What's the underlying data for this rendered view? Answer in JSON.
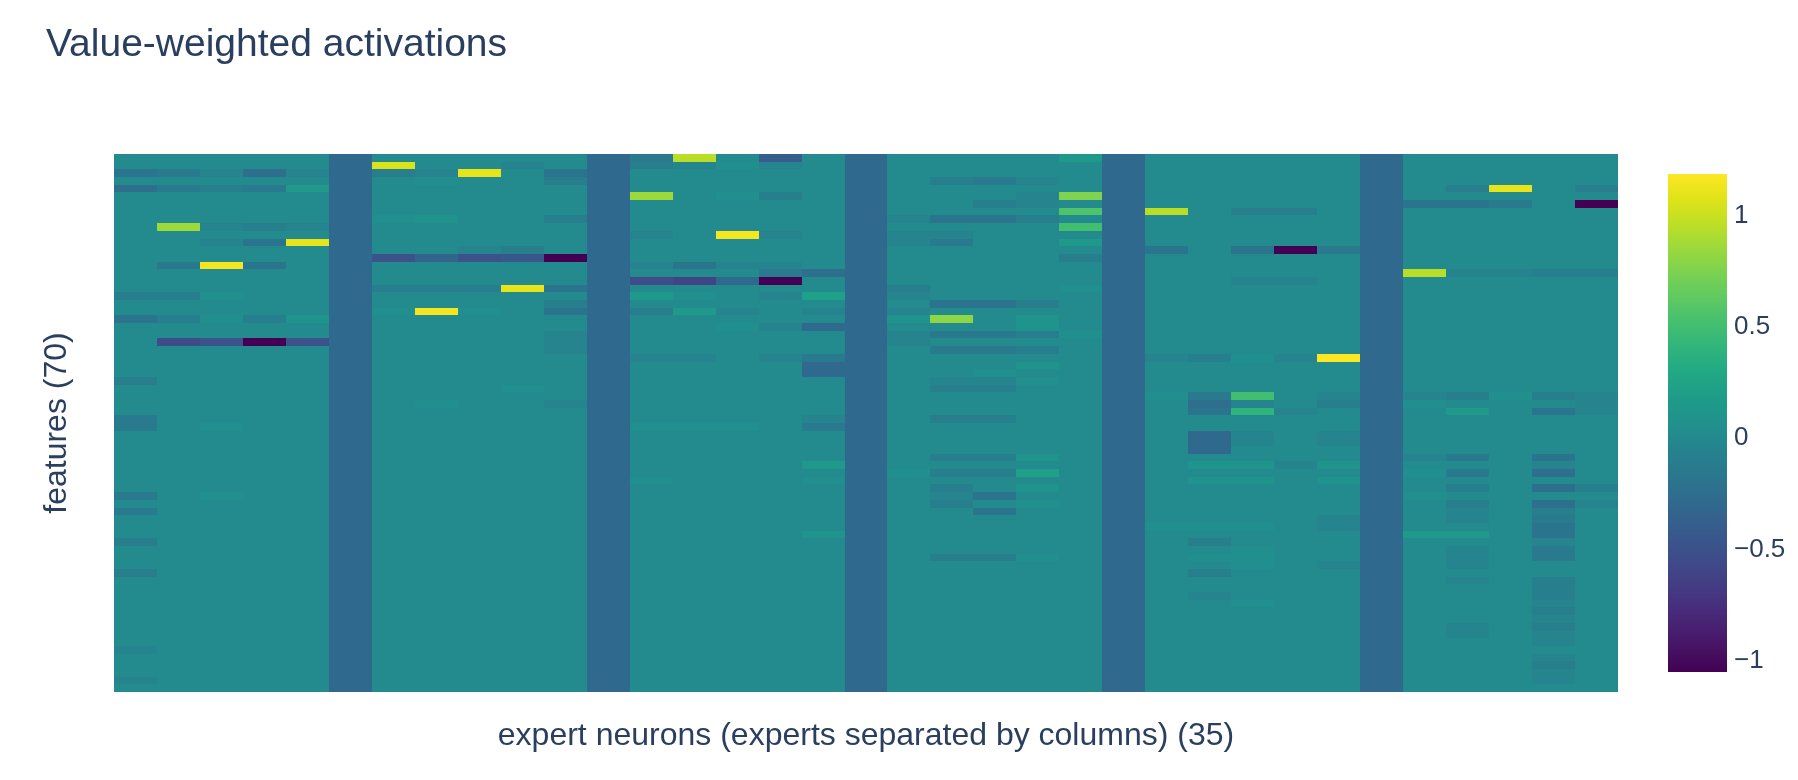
{
  "chart_data": {
    "type": "heatmap",
    "title": "Value-weighted activations",
    "xlabel": "expert neurons (experts separated by columns) (35)",
    "ylabel": "features (70)",
    "categories": [
      null,
      null,
      null,
      null,
      null,
      null,
      null,
      null,
      null,
      null,
      null,
      null,
      null,
      null,
      null,
      null,
      null,
      null,
      null,
      null,
      null,
      null,
      null,
      null,
      null,
      null,
      null,
      null,
      null,
      null,
      null,
      null,
      null,
      null,
      null
    ],
    "y_categories": [
      null,
      null,
      null,
      null,
      null,
      null,
      null,
      null,
      null,
      null,
      null,
      null,
      null,
      null,
      null,
      null,
      null,
      null,
      null,
      null,
      null,
      null,
      null,
      null,
      null,
      null,
      null,
      null,
      null,
      null,
      null,
      null,
      null,
      null,
      null,
      null,
      null,
      null,
      null,
      null,
      null,
      null,
      null,
      null,
      null,
      null,
      null,
      null,
      null,
      null,
      null,
      null,
      null,
      null,
      null,
      null,
      null,
      null,
      null,
      null,
      null,
      null,
      null,
      null,
      null,
      null,
      null,
      null,
      null,
      null
    ],
    "clim": [
      -1.06,
      1.18
    ],
    "cticks": [
      {
        "value": -1,
        "label": "−1"
      },
      {
        "value": -0.5,
        "label": "−0.5"
      },
      0,
      0.5,
      1
    ],
    "cells": [
      [
        0,
        0,
        0,
        0,
        0,
        -0.3,
        0,
        0,
        0,
        0,
        0,
        -0.3,
        -0.15,
        0.95,
        0,
        -0.4,
        0,
        -0.3,
        0,
        0,
        0,
        0,
        0.15,
        -0.3,
        0,
        0,
        0,
        0,
        0,
        -0.3,
        0,
        0,
        0,
        0,
        0
      ],
      [
        0,
        0,
        0,
        0,
        0,
        -0.3,
        1.05,
        0,
        0,
        -0.05,
        0,
        -0.3,
        -0.1,
        -0.05,
        0.05,
        -0.05,
        0,
        -0.3,
        0,
        0,
        0,
        0,
        0,
        -0.3,
        0,
        0,
        0,
        0,
        0,
        -0.3,
        0,
        0,
        0,
        0,
        0
      ],
      [
        -0.2,
        -0.15,
        -0.05,
        -0.25,
        -0.05,
        -0.3,
        -0.1,
        -0.05,
        1.1,
        0,
        -0.2,
        -0.3,
        0,
        0,
        0,
        0,
        0,
        -0.3,
        0,
        0,
        0,
        0,
        0,
        -0.3,
        0,
        0,
        0,
        0,
        0,
        -0.3,
        0,
        0,
        0,
        0,
        0
      ],
      [
        0,
        0,
        0,
        0,
        0,
        -0.3,
        0,
        0.05,
        0,
        0,
        -0.1,
        -0.3,
        0,
        0,
        0,
        0,
        0,
        -0.3,
        0,
        -0.1,
        -0.15,
        -0.05,
        0,
        -0.3,
        0,
        0,
        0,
        0,
        0,
        -0.3,
        0,
        0,
        0,
        0,
        0
      ],
      [
        -0.25,
        -0.15,
        -0.1,
        -0.15,
        0.15,
        -0.3,
        0,
        0,
        0,
        0,
        0,
        -0.3,
        0,
        0,
        0,
        0,
        0,
        -0.3,
        0,
        0,
        0,
        0,
        0,
        -0.3,
        0,
        0,
        0,
        0,
        0,
        -0.3,
        0,
        -0.1,
        1.1,
        0,
        -0.1
      ],
      [
        0,
        0,
        0,
        0,
        0,
        -0.3,
        0,
        0,
        0,
        0,
        0,
        -0.3,
        0.85,
        0,
        0.05,
        -0.1,
        0,
        -0.3,
        0,
        0,
        0,
        -0.05,
        0.75,
        -0.3,
        0,
        0,
        0,
        0,
        0,
        -0.3,
        0,
        0,
        0,
        0,
        0
      ],
      [
        0,
        0,
        0,
        0,
        0,
        -0.3,
        0,
        0,
        0,
        0,
        0,
        -0.3,
        0,
        0,
        0,
        0,
        0,
        -0.3,
        0,
        0,
        -0.1,
        -0.05,
        0,
        -0.3,
        0,
        0,
        0,
        0,
        0,
        -0.3,
        -0.2,
        -0.2,
        -0.15,
        0,
        -1.06
      ],
      [
        0,
        0,
        0,
        0,
        0,
        -0.3,
        0,
        0,
        0,
        0,
        0,
        -0.3,
        0,
        0,
        0,
        0,
        0,
        -0.3,
        0,
        0,
        0,
        0,
        0.55,
        -0.3,
        0.95,
        0,
        -0.1,
        -0.1,
        0,
        -0.3,
        0,
        0,
        0,
        0,
        0
      ],
      [
        0,
        0,
        0,
        0,
        0,
        -0.3,
        0.05,
        0.1,
        0,
        0,
        -0.1,
        -0.3,
        0,
        0,
        0,
        0,
        0,
        -0.3,
        -0.05,
        -0.2,
        -0.2,
        -0.1,
        0,
        -0.3,
        0,
        0,
        0,
        0,
        0,
        -0.3,
        0,
        0,
        0,
        0,
        0
      ],
      [
        0,
        0.85,
        -0.05,
        -0.1,
        -0.05,
        -0.3,
        0,
        0,
        0,
        0,
        0,
        -0.3,
        0,
        0,
        0,
        0,
        0,
        -0.3,
        0,
        0,
        0,
        0,
        0.5,
        -0.3,
        0,
        0,
        0,
        0,
        0,
        -0.3,
        0,
        0,
        0,
        0,
        0
      ],
      [
        0,
        0,
        0,
        0,
        0,
        -0.3,
        0,
        0,
        0,
        0,
        0,
        -0.3,
        -0.05,
        0,
        1.15,
        -0.05,
        0,
        -0.3,
        -0.05,
        -0.05,
        0,
        0,
        0,
        -0.3,
        0,
        0,
        0,
        0,
        0,
        -0.3,
        0,
        0,
        0,
        0,
        0
      ],
      [
        0,
        0,
        -0.05,
        -0.2,
        1.1,
        -0.3,
        0,
        0,
        0,
        0,
        0,
        -0.3,
        0,
        0,
        0,
        0,
        0,
        -0.3,
        -0.05,
        -0.15,
        0,
        0,
        0.15,
        -0.3,
        0,
        0,
        0,
        0,
        0,
        -0.3,
        0,
        0,
        0,
        0,
        0
      ],
      [
        0,
        0,
        0,
        0,
        0,
        -0.3,
        0,
        0,
        -0.05,
        -0.1,
        0,
        -0.3,
        0,
        0,
        0,
        0,
        0,
        -0.3,
        0,
        0,
        0,
        0,
        0,
        -0.3,
        -0.2,
        0,
        -0.2,
        -1.06,
        -0.15,
        -0.3,
        0,
        0,
        0,
        0,
        0
      ],
      [
        0,
        0,
        0,
        0,
        0,
        -0.3,
        -0.5,
        -0.35,
        -0.5,
        -0.45,
        -1.06,
        -0.3,
        0,
        0,
        0,
        0,
        0,
        -0.3,
        0,
        0,
        0,
        0,
        -0.1,
        -0.3,
        0,
        0,
        0,
        0,
        0,
        -0.3,
        0,
        0,
        0,
        0,
        0
      ],
      [
        0,
        -0.15,
        1.15,
        -0.2,
        0,
        -0.3,
        0,
        0,
        0,
        0,
        0,
        -0.3,
        -0.05,
        -0.2,
        -0.05,
        -0.05,
        0,
        -0.3,
        0,
        0,
        0,
        0,
        0,
        -0.3,
        0,
        0,
        0,
        0,
        0,
        -0.3,
        0,
        0,
        0,
        0,
        0
      ],
      [
        0,
        0,
        0,
        0,
        0,
        -0.3,
        0,
        0,
        0,
        0,
        0,
        -0.3,
        0,
        0,
        0,
        -0.15,
        -0.25,
        -0.3,
        0,
        0,
        0,
        0,
        0,
        -0.3,
        0,
        0,
        0,
        0,
        0,
        -0.3,
        0.95,
        -0.05,
        -0.05,
        -0.1,
        -0.1
      ],
      [
        0,
        0,
        0,
        0,
        0,
        -0.3,
        0,
        0,
        0,
        0,
        0,
        -0.3,
        -0.55,
        -0.6,
        -0.3,
        -1.06,
        0,
        -0.3,
        0,
        0,
        0,
        0,
        0,
        -0.3,
        0,
        0,
        -0.05,
        -0.05,
        0,
        -0.3,
        0,
        0,
        0,
        0,
        0
      ],
      [
        0,
        0,
        0,
        0,
        0,
        -0.3,
        -0.1,
        -0.1,
        -0.1,
        1.1,
        -0.2,
        -0.3,
        0,
        0,
        0,
        0,
        0,
        -0.3,
        -0.1,
        0,
        0,
        0,
        0.05,
        -0.3,
        0,
        0,
        0,
        0,
        0,
        -0.3,
        0,
        0,
        0,
        0,
        0
      ],
      [
        -0.1,
        -0.1,
        0.05,
        0,
        0,
        -0.3,
        0,
        0,
        0,
        0,
        0,
        -0.3,
        0.15,
        0.05,
        0,
        -0.05,
        0.2,
        -0.3,
        -0.05,
        0,
        0,
        0,
        0,
        -0.3,
        0,
        0,
        0,
        0,
        0,
        -0.3,
        0,
        0,
        0,
        0,
        0
      ],
      [
        0,
        0,
        0,
        0,
        0,
        -0.3,
        0,
        0,
        0,
        0,
        -0.1,
        -0.3,
        0,
        0,
        0,
        0,
        0,
        -0.3,
        0,
        -0.2,
        -0.2,
        -0.1,
        0,
        -0.3,
        0,
        0,
        0,
        0,
        0,
        -0.3,
        0,
        0,
        0,
        0,
        0
      ],
      [
        0,
        0,
        0,
        0,
        0,
        -0.3,
        0.05,
        1.15,
        0.05,
        0,
        -0.2,
        -0.3,
        -0.1,
        0.15,
        -0.05,
        0,
        -0.05,
        -0.3,
        -0.05,
        0,
        0,
        0,
        0,
        -0.3,
        0,
        0,
        0,
        0,
        0,
        -0.3,
        0,
        0,
        0,
        0,
        0
      ],
      [
        -0.2,
        -0.1,
        0.05,
        -0.1,
        0.1,
        -0.3,
        0,
        0,
        0,
        0,
        0,
        -0.3,
        0,
        0,
        0,
        0,
        0,
        -0.3,
        0.1,
        0.8,
        0,
        0.1,
        0,
        -0.3,
        0,
        0,
        0,
        0,
        0,
        -0.3,
        0,
        0,
        0,
        0,
        0
      ],
      [
        0,
        0,
        0,
        0,
        0,
        -0.3,
        0,
        0,
        0,
        0,
        0,
        -0.3,
        0,
        0,
        0.05,
        -0.05,
        -0.3,
        -0.3,
        0,
        0,
        0,
        0.1,
        0,
        -0.3,
        0,
        0,
        0,
        0,
        0,
        -0.3,
        0,
        0,
        0,
        0,
        0
      ],
      [
        0,
        0,
        0,
        0,
        0,
        -0.3,
        0,
        0,
        0,
        0,
        -0.05,
        -0.3,
        0,
        0,
        0,
        0,
        0,
        -0.3,
        -0.05,
        -0.15,
        -0.15,
        -0.1,
        0.05,
        -0.3,
        0,
        0,
        0,
        0,
        0,
        -0.3,
        0,
        0,
        0,
        0,
        0
      ],
      [
        0,
        -0.55,
        -0.5,
        -1.06,
        -0.5,
        -0.3,
        0,
        0,
        0,
        0,
        -0.05,
        -0.3,
        0,
        0,
        0,
        0,
        0,
        -0.3,
        -0.05,
        0,
        0,
        0,
        0,
        -0.3,
        0,
        0,
        0,
        0,
        0,
        -0.3,
        0,
        0,
        0,
        0,
        0
      ],
      [
        0,
        0,
        0,
        0,
        0,
        -0.3,
        0,
        0,
        0,
        0,
        -0.05,
        -0.3,
        0,
        0,
        0,
        0,
        0,
        -0.3,
        0,
        -0.15,
        -0.15,
        -0.1,
        0,
        -0.3,
        0,
        0,
        0,
        0,
        0,
        -0.3,
        0,
        0,
        0,
        0,
        0
      ],
      [
        0,
        0,
        0,
        0,
        0,
        -0.3,
        0,
        0,
        0,
        0,
        0,
        -0.3,
        -0.05,
        -0.05,
        0,
        -0.05,
        -0.15,
        -0.3,
        0,
        0,
        0,
        0,
        0,
        -0.3,
        -0.05,
        -0.1,
        0.05,
        -0.05,
        1.18,
        -0.3,
        0,
        0,
        0,
        0,
        0
      ],
      [
        0,
        0,
        0,
        0,
        0,
        -0.3,
        0,
        0,
        0,
        0,
        0,
        -0.3,
        0,
        0,
        0,
        0,
        -0.3,
        -0.3,
        0,
        0,
        0,
        0.1,
        0,
        -0.3,
        0,
        0,
        0,
        0,
        0,
        -0.3,
        0,
        0,
        0,
        0,
        0
      ],
      [
        0,
        0,
        0,
        0,
        0,
        -0.3,
        0,
        0,
        0,
        0,
        0,
        -0.3,
        0,
        0,
        0,
        0,
        -0.3,
        -0.3,
        0,
        0,
        0.05,
        0,
        0,
        -0.3,
        0,
        0,
        0,
        0,
        0,
        -0.3,
        0,
        0,
        0,
        0,
        0
      ],
      [
        -0.1,
        0,
        0,
        0,
        0,
        -0.3,
        0,
        0,
        0,
        0,
        0,
        -0.3,
        0,
        0,
        0,
        0,
        0,
        -0.3,
        0,
        -0.05,
        -0.05,
        0.05,
        0,
        -0.3,
        0,
        0,
        0,
        0,
        0,
        -0.3,
        0,
        0,
        0,
        0,
        0
      ],
      [
        0,
        0,
        0,
        0,
        0,
        -0.3,
        0,
        0,
        0,
        0.05,
        0,
        -0.3,
        0,
        0,
        0,
        0,
        0,
        -0.3,
        0,
        -0.1,
        -0.1,
        0,
        0,
        -0.3,
        0,
        0,
        0,
        0,
        0,
        -0.3,
        0,
        0,
        0,
        0,
        0
      ],
      [
        0,
        0,
        0,
        0,
        0,
        -0.3,
        0,
        0,
        0,
        0,
        0,
        -0.3,
        0,
        0,
        0,
        0,
        0,
        -0.3,
        0,
        0,
        0,
        0,
        0,
        -0.3,
        0.05,
        -0.15,
        0.5,
        0,
        -0.05,
        -0.3,
        -0.05,
        -0.1,
        0.05,
        -0.1,
        -0.05
      ],
      [
        0,
        0,
        0,
        0,
        0,
        -0.3,
        0,
        0.05,
        0,
        0,
        -0.05,
        -0.3,
        0,
        0,
        0,
        0,
        0,
        -0.3,
        0,
        0,
        0,
        0,
        0,
        -0.3,
        0,
        -0.25,
        -0.05,
        0,
        -0.1,
        -0.3,
        0.05,
        0,
        0,
        0,
        -0.05
      ],
      [
        0,
        0,
        0,
        0,
        0,
        -0.3,
        0,
        0,
        0,
        0,
        0,
        -0.3,
        0,
        0,
        0,
        0,
        0,
        -0.3,
        0,
        0,
        0,
        0,
        0,
        -0.3,
        0,
        -0.2,
        0.4,
        -0.05,
        0,
        -0.3,
        0,
        0.15,
        0,
        -0.2,
        -0.05
      ],
      [
        -0.15,
        0,
        0,
        0,
        0,
        -0.3,
        0,
        0,
        0,
        0,
        0,
        -0.3,
        0,
        0,
        0,
        0,
        -0.05,
        -0.3,
        0,
        -0.1,
        -0.1,
        0,
        0,
        -0.3,
        0,
        0,
        0,
        0,
        0,
        -0.3,
        0,
        0,
        0,
        0,
        0
      ],
      [
        -0.15,
        0,
        0.05,
        0,
        0,
        -0.3,
        0,
        0,
        0,
        0,
        0,
        -0.3,
        0.05,
        0.05,
        0.05,
        0,
        -0.15,
        -0.3,
        0,
        0,
        0,
        0,
        0,
        -0.3,
        0,
        0,
        0,
        0,
        0,
        -0.3,
        0,
        0,
        0,
        0,
        0
      ],
      [
        0,
        0,
        0,
        0,
        0,
        -0.3,
        0,
        0,
        0,
        0,
        0,
        -0.3,
        0,
        0,
        0,
        0,
        0,
        -0.3,
        0,
        0,
        0,
        0,
        0,
        -0.3,
        0,
        -0.3,
        -0.05,
        0,
        -0.05,
        -0.3,
        0,
        0,
        0,
        0,
        0
      ],
      [
        0,
        0,
        0,
        0,
        0,
        -0.3,
        0,
        0,
        0,
        0,
        0,
        -0.3,
        0,
        0,
        0,
        0,
        0,
        -0.3,
        0,
        0,
        0,
        0,
        0,
        -0.3,
        0,
        -0.3,
        -0.05,
        0,
        -0.05,
        -0.3,
        0,
        0,
        0,
        0,
        0
      ],
      [
        0,
        0,
        0,
        0,
        0,
        -0.3,
        0,
        0,
        0,
        0,
        0,
        -0.3,
        0,
        0,
        0,
        0,
        0,
        -0.3,
        0,
        0,
        0,
        0,
        0,
        -0.3,
        0,
        -0.3,
        0,
        0,
        0,
        -0.3,
        0,
        0,
        0,
        0,
        0
      ],
      [
        0,
        0,
        0,
        0,
        0,
        -0.3,
        0,
        0,
        0,
        0,
        0,
        -0.3,
        0,
        0,
        0,
        0,
        0,
        -0.3,
        0,
        -0.1,
        -0.1,
        0.1,
        0,
        -0.3,
        0,
        0,
        0,
        0,
        0,
        -0.3,
        -0.05,
        -0.15,
        0,
        -0.2,
        0
      ],
      [
        0,
        0,
        0,
        0,
        0,
        -0.3,
        0,
        0,
        0,
        0,
        0,
        -0.3,
        0,
        0,
        0,
        0,
        0.15,
        -0.3,
        0,
        0,
        0,
        0,
        0,
        -0.3,
        0,
        0.1,
        0.1,
        -0.05,
        0.1,
        -0.3,
        0,
        0,
        0,
        -0.05,
        0
      ],
      [
        0,
        0,
        0,
        0,
        0,
        -0.3,
        0,
        0,
        0,
        0,
        0,
        -0.3,
        0,
        0,
        0,
        0,
        0,
        -0.3,
        0.05,
        -0.1,
        -0.1,
        0.2,
        0,
        -0.3,
        0,
        0,
        0,
        0,
        0,
        -0.3,
        0.05,
        -0.15,
        0,
        -0.25,
        0
      ],
      [
        0,
        0,
        0,
        0,
        0,
        -0.3,
        0,
        0,
        0,
        0,
        0,
        -0.3,
        0.05,
        0,
        0,
        0,
        0.05,
        -0.3,
        0,
        0,
        0,
        0,
        0,
        -0.3,
        0,
        0.1,
        0.1,
        0,
        0.1,
        -0.3,
        0,
        0,
        0,
        0,
        0
      ],
      [
        0,
        0,
        0,
        0,
        0,
        -0.3,
        0,
        0,
        0,
        0,
        0,
        -0.3,
        0,
        0,
        0,
        0,
        0,
        -0.3,
        0,
        -0.1,
        0,
        0.1,
        0,
        -0.3,
        0,
        0,
        0,
        0,
        0,
        -0.3,
        0,
        -0.1,
        0,
        -0.25,
        -0.1
      ],
      [
        -0.15,
        0,
        0.05,
        0,
        0,
        -0.3,
        0,
        0,
        0,
        0,
        0,
        -0.3,
        0,
        0,
        0,
        0,
        0,
        -0.3,
        0,
        -0.05,
        -0.2,
        0,
        0,
        -0.3,
        0,
        0,
        0,
        0,
        0,
        -0.3,
        0.05,
        0,
        0,
        0,
        0
      ],
      [
        0,
        0,
        0,
        0,
        0,
        -0.3,
        0,
        0,
        0,
        0,
        0,
        -0.3,
        0,
        0,
        0,
        0,
        0,
        -0.3,
        0,
        -0.1,
        0,
        0.05,
        0,
        -0.3,
        0,
        0,
        0,
        0,
        0,
        -0.3,
        0,
        -0.1,
        0,
        -0.25,
        -0.05
      ],
      [
        -0.15,
        0,
        0,
        0,
        0,
        -0.3,
        0,
        0,
        0,
        0,
        0,
        -0.3,
        0,
        0,
        0,
        0,
        0,
        -0.3,
        0,
        0,
        -0.2,
        0,
        0,
        -0.3,
        0,
        0,
        0,
        0,
        0,
        -0.3,
        0,
        -0.05,
        0,
        -0.1,
        0
      ],
      [
        0,
        0,
        0,
        0,
        0,
        -0.3,
        0,
        0,
        0,
        0,
        0,
        -0.3,
        0,
        0,
        0,
        0,
        0,
        -0.3,
        0,
        0,
        0,
        0,
        0,
        -0.3,
        0,
        0,
        0,
        0,
        -0.05,
        -0.3,
        0,
        -0.05,
        0,
        -0.15,
        0
      ],
      [
        0,
        0,
        0,
        0,
        0,
        -0.3,
        0,
        0,
        0,
        0,
        0,
        -0.3,
        0,
        0,
        0,
        0,
        0,
        -0.3,
        0,
        0,
        0,
        0,
        0,
        -0.3,
        0.05,
        0.05,
        0.05,
        0,
        -0.05,
        -0.3,
        0,
        0,
        0,
        -0.2,
        0
      ],
      [
        0,
        0,
        0,
        0,
        0,
        -0.3,
        0,
        0,
        0,
        0,
        0,
        -0.3,
        0,
        0,
        0,
        0,
        0.1,
        -0.3,
        0,
        0,
        0,
        0,
        0,
        -0.3,
        0,
        0,
        0,
        0,
        0,
        -0.3,
        0.15,
        0.15,
        0,
        -0.2,
        0
      ],
      [
        -0.1,
        0,
        0,
        0,
        0,
        -0.3,
        0,
        0,
        0,
        0,
        0,
        -0.3,
        0,
        0,
        0,
        0,
        0,
        -0.3,
        0,
        0,
        0,
        0,
        0,
        -0.3,
        0,
        -0.1,
        0,
        0,
        0,
        -0.3,
        0,
        0,
        0,
        -0.05,
        0
      ],
      [
        0,
        0,
        0,
        0,
        0,
        -0.3,
        0,
        0,
        0,
        0,
        0,
        -0.3,
        0,
        0,
        0,
        0,
        0,
        -0.3,
        0,
        0,
        0,
        0,
        0,
        -0.3,
        0,
        0,
        0.05,
        0,
        0,
        -0.3,
        0,
        -0.05,
        0,
        -0.15,
        0
      ],
      [
        0,
        0,
        0,
        0,
        0,
        -0.3,
        0,
        0,
        0,
        0,
        0,
        -0.3,
        0,
        0,
        0,
        0,
        0,
        -0.3,
        0,
        -0.1,
        -0.1,
        0.05,
        0,
        -0.3,
        0,
        0.05,
        0.05,
        0,
        0,
        -0.3,
        0,
        -0.05,
        0,
        -0.15,
        0
      ],
      [
        0,
        0,
        0,
        0,
        0,
        -0.3,
        0,
        0,
        0,
        0,
        0,
        -0.3,
        0,
        0,
        0,
        0,
        0,
        -0.3,
        0,
        0,
        0,
        0,
        0,
        -0.3,
        0,
        0,
        0.05,
        0,
        -0.05,
        -0.3,
        0,
        -0.05,
        0,
        0,
        0
      ],
      [
        -0.1,
        0,
        0,
        0,
        0,
        -0.3,
        0,
        0,
        0,
        0,
        0,
        -0.3,
        0,
        0,
        0,
        0,
        0,
        -0.3,
        0,
        0,
        0,
        0,
        0,
        -0.3,
        0,
        -0.1,
        0,
        0,
        0,
        -0.3,
        0,
        0,
        0,
        0,
        0
      ],
      [
        0,
        0,
        0,
        0,
        0,
        -0.3,
        0,
        0,
        0,
        0,
        0,
        -0.3,
        0,
        0,
        0,
        0,
        0,
        -0.3,
        0,
        0,
        0,
        0,
        0,
        -0.3,
        0,
        0,
        0,
        0,
        0,
        -0.3,
        0,
        -0.05,
        0,
        -0.1,
        0
      ],
      [
        0,
        0,
        0,
        0,
        0,
        -0.3,
        0,
        0,
        0,
        0,
        0,
        -0.3,
        0,
        0,
        0,
        0,
        0,
        -0.3,
        0,
        0,
        0,
        0,
        0,
        -0.3,
        0,
        0,
        0,
        0,
        0,
        -0.3,
        0,
        0,
        0,
        -0.1,
        0
      ],
      [
        0,
        0,
        0,
        0,
        0,
        -0.3,
        0,
        0,
        0,
        0,
        0,
        -0.3,
        0,
        0,
        0,
        0,
        0,
        -0.3,
        0,
        0,
        0,
        0,
        0,
        -0.3,
        0,
        -0.05,
        0,
        0,
        0,
        -0.3,
        0,
        0,
        0,
        -0.1,
        0
      ],
      [
        0,
        0,
        0,
        0,
        0,
        -0.3,
        0,
        0,
        0,
        0,
        0,
        -0.3,
        0,
        0,
        0,
        0,
        0,
        -0.3,
        0,
        0,
        0,
        0,
        0,
        -0.3,
        0,
        0,
        0.05,
        0,
        0,
        -0.3,
        0,
        0,
        0,
        -0.05,
        0
      ],
      [
        0,
        0,
        0,
        0,
        0,
        -0.3,
        0,
        0,
        0,
        0,
        0,
        -0.3,
        0,
        0,
        0,
        0,
        0,
        -0.3,
        0,
        0,
        0,
        0,
        0,
        -0.3,
        0,
        0,
        0,
        0,
        0,
        -0.3,
        0,
        0,
        0,
        -0.1,
        0
      ],
      [
        0,
        0,
        0,
        0,
        0,
        -0.3,
        0,
        0,
        0,
        0,
        0,
        -0.3,
        0,
        0,
        0,
        0,
        0,
        -0.3,
        0,
        0,
        0,
        0,
        0,
        -0.3,
        0,
        0,
        0,
        0,
        0,
        -0.3,
        0,
        0,
        0,
        -0.05,
        0
      ],
      [
        0,
        0,
        0,
        0,
        0,
        -0.3,
        0,
        0,
        0,
        0,
        0,
        -0.3,
        0,
        0,
        0,
        0,
        0,
        -0.3,
        0,
        0,
        0,
        0,
        0,
        -0.3,
        0,
        0,
        0,
        0,
        0,
        -0.3,
        0,
        -0.05,
        0,
        -0.1,
        0
      ],
      [
        0,
        0,
        0,
        0,
        0,
        -0.3,
        0,
        0,
        0,
        0,
        0,
        -0.3,
        0,
        0,
        0,
        0,
        0,
        -0.3,
        0,
        0,
        0,
        0,
        0,
        -0.3,
        0,
        0,
        0,
        0,
        0,
        -0.3,
        0,
        -0.05,
        0,
        -0.05,
        0
      ],
      [
        0,
        0,
        0,
        0,
        0,
        -0.3,
        0,
        0,
        0,
        0,
        0,
        -0.3,
        0,
        0,
        0,
        0,
        0,
        -0.3,
        0,
        0,
        0,
        0,
        0,
        -0.3,
        0,
        0,
        0,
        0,
        0,
        -0.3,
        0,
        0,
        0,
        -0.05,
        0
      ],
      [
        -0.05,
        0,
        0,
        0,
        0,
        -0.3,
        0,
        0,
        0,
        0,
        0,
        -0.3,
        0,
        0,
        0,
        0,
        0,
        -0.3,
        0,
        0,
        0,
        0,
        0,
        -0.3,
        0,
        0,
        0,
        0,
        0,
        -0.3,
        0,
        0,
        0,
        0,
        0
      ],
      [
        0,
        0,
        0,
        0,
        0,
        -0.3,
        0,
        0,
        0,
        0,
        0,
        -0.3,
        0,
        0,
        0,
        0,
        0,
        -0.3,
        0,
        0,
        0,
        0,
        0,
        -0.3,
        0,
        0,
        0,
        0,
        0,
        -0.3,
        0,
        0,
        0,
        -0.05,
        0
      ],
      [
        0,
        0,
        0,
        0,
        0,
        -0.3,
        0,
        0,
        0,
        0,
        0,
        -0.3,
        0,
        0,
        0,
        0,
        0,
        -0.3,
        0,
        0,
        0,
        0,
        0,
        -0.3,
        0,
        0,
        0,
        0,
        0,
        -0.3,
        0,
        0,
        0,
        -0.1,
        0
      ],
      [
        0,
        0,
        0,
        0,
        0,
        -0.3,
        0,
        0,
        0,
        0,
        0,
        -0.3,
        0,
        0,
        0,
        0,
        0,
        -0.3,
        0,
        0,
        0,
        0,
        0,
        -0.3,
        0,
        0,
        0,
        0,
        0,
        -0.3,
        0,
        0,
        0,
        -0.05,
        0
      ],
      [
        -0.05,
        0,
        0,
        0,
        0,
        -0.3,
        0,
        0,
        0,
        0,
        0,
        -0.3,
        0,
        0,
        0,
        0,
        0,
        -0.3,
        0,
        0,
        0,
        0,
        0,
        -0.3,
        0,
        0,
        0,
        0,
        0,
        -0.3,
        0,
        0,
        0,
        -0.05,
        0
      ],
      [
        0,
        0,
        0,
        0,
        0,
        -0.3,
        0,
        0,
        0,
        0,
        0,
        -0.3,
        0,
        0,
        0,
        0,
        0,
        -0.3,
        0,
        0,
        0,
        0,
        0,
        -0.3,
        0,
        0,
        0,
        0,
        0,
        -0.3,
        0,
        0,
        0,
        0,
        0
      ]
    ]
  }
}
